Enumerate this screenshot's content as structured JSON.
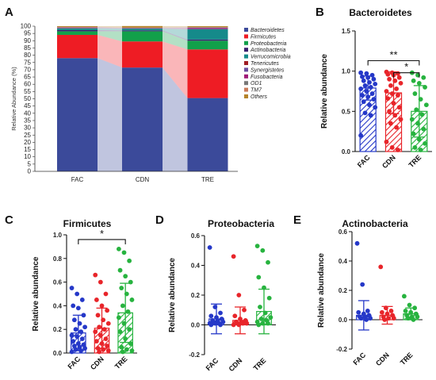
{
  "panel_labels": {
    "A": "A",
    "B": "B",
    "C": "C",
    "D": "D",
    "E": "E"
  },
  "colors": {
    "FAC": "#2538c8",
    "CDN": "#e8252a",
    "TRE": "#27b33f"
  },
  "chart_data": [
    {
      "panel": "A",
      "type": "area",
      "stacked": true,
      "title": "",
      "ylabel": "Relative Abundance (%)",
      "xlabel": "",
      "ylim": [
        0,
        100
      ],
      "yticks": [
        0,
        5,
        10,
        15,
        20,
        25,
        30,
        35,
        40,
        45,
        50,
        55,
        60,
        65,
        70,
        75,
        80,
        85,
        90,
        95,
        100
      ],
      "categories": [
        "FAC",
        "CDN",
        "TRE"
      ],
      "legend_position": "right",
      "series": [
        {
          "name": "Bacteroidetes",
          "color": "#3b4a9a",
          "values": [
            78,
            71.5,
            50.5
          ]
        },
        {
          "name": "Firmicutes",
          "color": "#ee1c24",
          "values": [
            16,
            18,
            33.5
          ]
        },
        {
          "name": "Proteobacteria",
          "color": "#12a04a",
          "values": [
            2.5,
            7,
            6
          ]
        },
        {
          "name": "Actinobacteria",
          "color": "#3a1f6e",
          "values": [
            0.8,
            0.6,
            0.8
          ]
        },
        {
          "name": "Verrucomicrobia",
          "color": "#158a8a",
          "values": [
            1.2,
            1.2,
            7
          ]
        },
        {
          "name": "Tenericutes",
          "color": "#a01e25",
          "values": [
            0.2,
            0.1,
            0.2
          ]
        },
        {
          "name": "Synergistetes",
          "color": "#6a4fa0",
          "values": [
            0.3,
            0.2,
            0.5
          ]
        },
        {
          "name": "Fusobacteria",
          "color": "#a01a78",
          "values": [
            0.2,
            0.2,
            0.5
          ]
        },
        {
          "name": "OD1",
          "color": "#777777",
          "values": [
            0.1,
            0.1,
            0.2
          ]
        },
        {
          "name": "TM7",
          "color": "#c97a5a",
          "values": [
            0.1,
            0.1,
            0.1
          ]
        },
        {
          "name": "Others",
          "color": "#b5832a",
          "values": [
            0.6,
            1.1,
            0.7
          ]
        }
      ]
    },
    {
      "panel": "B",
      "type": "bar",
      "title": "Bacteroidetes",
      "ylabel": "Relative abundance",
      "ylim": [
        0,
        1.5
      ],
      "yticks": [
        "0.0",
        "0.5",
        "1.0",
        "1.5"
      ],
      "categories": [
        "FAC",
        "CDN",
        "TRE"
      ],
      "values": [
        0.79,
        0.73,
        0.5
      ],
      "sd": [
        0.15,
        0.26,
        0.32
      ],
      "points": [
        [
          0.98,
          0.97,
          0.95,
          0.93,
          0.92,
          0.9,
          0.88,
          0.86,
          0.84,
          0.82,
          0.8,
          0.78,
          0.75,
          0.72,
          0.7,
          0.68,
          0.65,
          0.62,
          0.58,
          0.55,
          0.48,
          0.45,
          0.2
        ],
        [
          0.99,
          0.98,
          0.97,
          0.96,
          0.95,
          0.92,
          0.9,
          0.88,
          0.85,
          0.82,
          0.78,
          0.75,
          0.72,
          0.7,
          0.66,
          0.6,
          0.55,
          0.5,
          0.45,
          0.4,
          0.35,
          0.3,
          0.12,
          0.05,
          0.02
        ],
        [
          0.98,
          0.95,
          0.92,
          0.88,
          0.85,
          0.8,
          0.72,
          0.65,
          0.58,
          0.52,
          0.46,
          0.4,
          0.35,
          0.28,
          0.22,
          0.15,
          0.1,
          0.05,
          0.02
        ]
      ],
      "brackets": [
        {
          "from": 0,
          "to": 2,
          "y": 1.13,
          "label": "**"
        },
        {
          "from": 1,
          "to": 2,
          "y": 0.98,
          "label": "*"
        }
      ]
    },
    {
      "panel": "C",
      "type": "bar",
      "title": "Firmicutes",
      "ylabel": "Relative abundance",
      "ylim": [
        0,
        1.0
      ],
      "yticks": [
        "0.0",
        "0.2",
        "0.4",
        "0.6",
        "0.8",
        "1.0"
      ],
      "categories": [
        "FAC",
        "CDN",
        "TRE"
      ],
      "values": [
        0.17,
        0.21,
        0.34
      ],
      "sd": [
        0.15,
        0.17,
        0.25
      ],
      "points": [
        [
          0.55,
          0.5,
          0.45,
          0.4,
          0.38,
          0.32,
          0.28,
          0.25,
          0.22,
          0.2,
          0.18,
          0.15,
          0.14,
          0.12,
          0.1,
          0.08,
          0.07,
          0.06,
          0.05,
          0.04,
          0.03,
          0.02,
          0.01
        ],
        [
          0.66,
          0.6,
          0.5,
          0.45,
          0.4,
          0.36,
          0.32,
          0.28,
          0.25,
          0.22,
          0.2,
          0.18,
          0.15,
          0.12,
          0.1,
          0.08,
          0.06,
          0.04,
          0.03,
          0.02,
          0.01
        ],
        [
          0.88,
          0.85,
          0.78,
          0.7,
          0.65,
          0.6,
          0.55,
          0.5,
          0.45,
          0.4,
          0.35,
          0.3,
          0.25,
          0.2,
          0.18,
          0.12,
          0.08,
          0.05,
          0.03,
          0.02,
          0.01
        ]
      ],
      "brackets": [
        {
          "from": 0,
          "to": 2,
          "y": 0.96,
          "label": "*"
        }
      ]
    },
    {
      "panel": "D",
      "type": "bar",
      "title": "Proteobacteria",
      "ylabel": "Relative abundance",
      "ylim": [
        -0.2,
        0.6
      ],
      "yticks": [
        "-0.2",
        "0.0",
        "0.2",
        "0.4",
        "0.6"
      ],
      "categories": [
        "FAC",
        "CDN",
        "TRE"
      ],
      "values": [
        0.04,
        0.03,
        0.09
      ],
      "sd": [
        0.1,
        0.09,
        0.15
      ],
      "points": [
        [
          0.52,
          0.12,
          0.08,
          0.06,
          0.05,
          0.04,
          0.03,
          0.03,
          0.02,
          0.02,
          0.01,
          0.01,
          0.01,
          0.0,
          0.0
        ],
        [
          0.46,
          0.2,
          0.1,
          0.06,
          0.04,
          0.03,
          0.02,
          0.02,
          0.01,
          0.01,
          0.01,
          0.0,
          0.0
        ],
        [
          0.53,
          0.5,
          0.42,
          0.32,
          0.25,
          0.18,
          0.12,
          0.08,
          0.05,
          0.04,
          0.03,
          0.02,
          0.01,
          0.01,
          0.0
        ]
      ],
      "brackets": []
    },
    {
      "panel": "E",
      "type": "bar",
      "title": "Actinobacteria",
      "ylabel": "Relative abundance",
      "ylim": [
        -0.2,
        0.6
      ],
      "yticks": [
        "-0.2",
        "0.0",
        "0.2",
        "0.4",
        "0.6"
      ],
      "categories": [
        "FAC",
        "CDN",
        "TRE"
      ],
      "values": [
        0.03,
        0.03,
        0.04
      ],
      "sd": [
        0.1,
        0.06,
        0.04
      ],
      "points": [
        [
          0.52,
          0.24,
          0.06,
          0.05,
          0.04,
          0.03,
          0.02,
          0.02,
          0.01,
          0.01,
          0.0
        ],
        [
          0.36,
          0.08,
          0.06,
          0.05,
          0.04,
          0.03,
          0.02,
          0.01,
          0.01,
          0.0
        ],
        [
          0.16,
          0.1,
          0.08,
          0.06,
          0.05,
          0.04,
          0.03,
          0.02,
          0.02,
          0.01,
          0.0
        ]
      ],
      "brackets": []
    }
  ]
}
